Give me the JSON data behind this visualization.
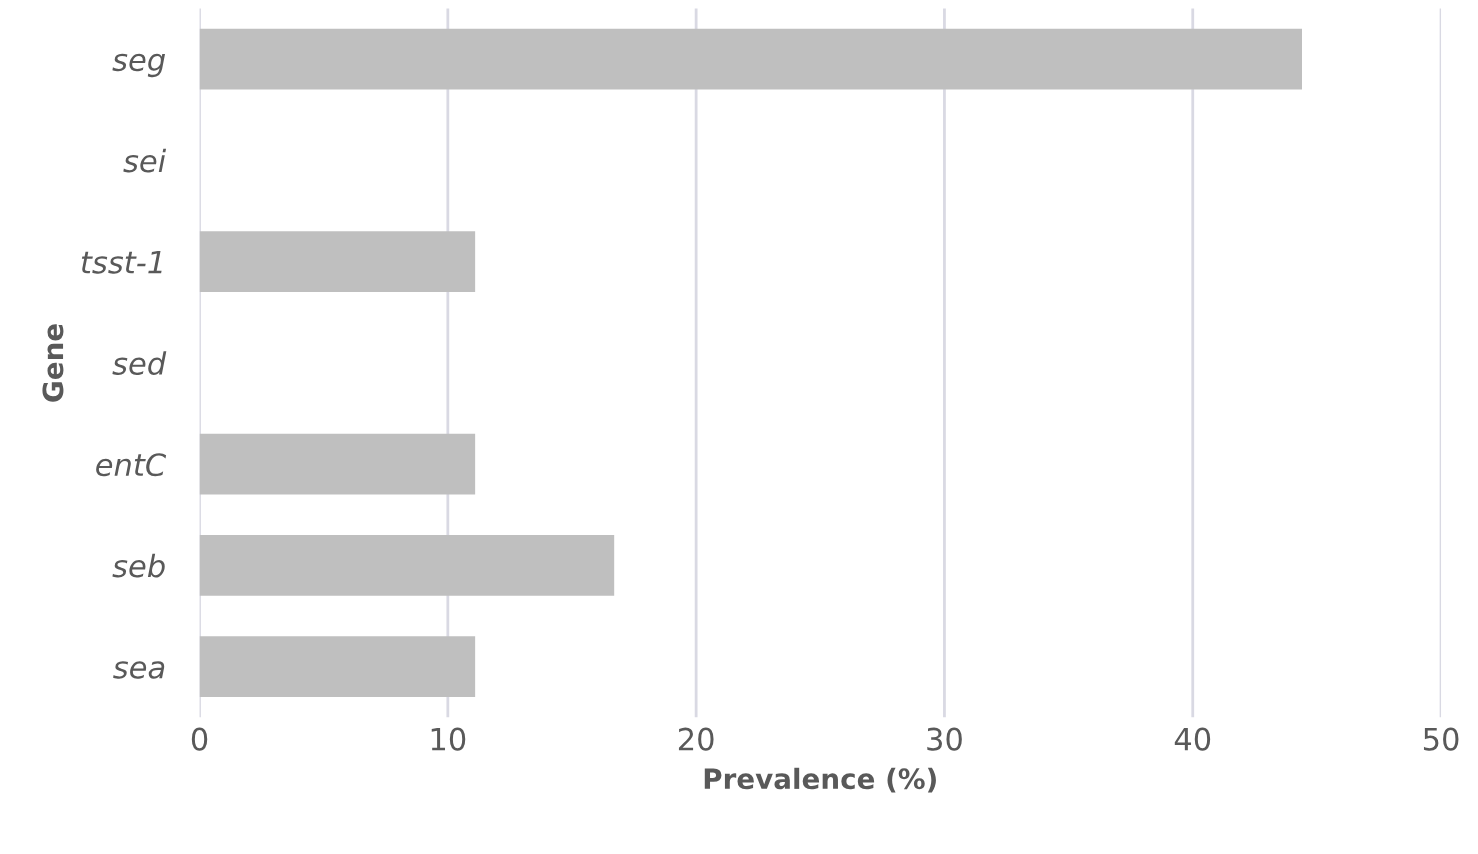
{
  "chart_data": {
    "type": "bar",
    "orientation": "horizontal",
    "xlabel": "Prevalence (%)",
    "ylabel": "Gene",
    "categories": [
      "seg",
      "sei",
      "tsst-1",
      "sed",
      "entC",
      "seb",
      "sea"
    ],
    "values": [
      44.4,
      0,
      11.1,
      0,
      11.1,
      16.7,
      11.1
    ],
    "color": "#bfbfbf",
    "xlim": [
      0,
      50
    ],
    "xticks": [
      0,
      10,
      20,
      30,
      40,
      50
    ],
    "grid": "x"
  }
}
